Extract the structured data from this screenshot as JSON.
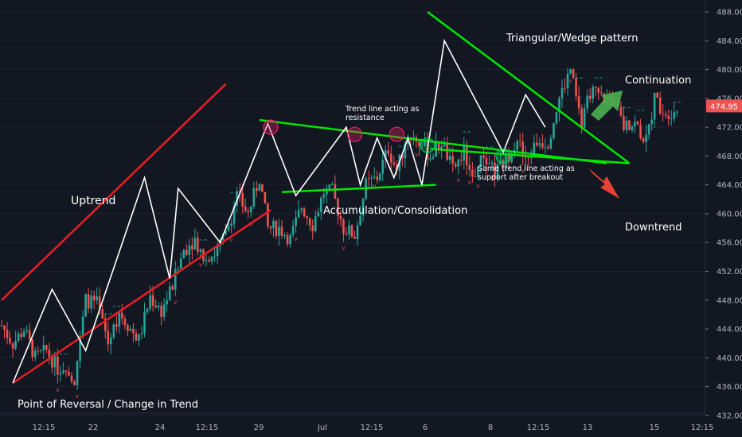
{
  "chart_data": {
    "type": "candlestick",
    "y_axis": {
      "ticks": [
        488,
        484,
        480,
        476,
        472,
        468,
        464,
        460,
        456,
        452,
        448,
        444,
        440,
        436,
        432
      ],
      "tick_labels": [
        "488.00",
        "484.00",
        "480.00",
        "476.00",
        "472.00",
        "468.00",
        "464.00",
        "460.00",
        "456.00",
        "452.00",
        "448.00",
        "444.00",
        "440.00",
        "436.00",
        "432.00"
      ],
      "range": [
        432,
        489
      ],
      "current_price": "474.95"
    },
    "x_axis": {
      "tick_labels": [
        "12:15",
        "22",
        "24",
        "12:15",
        "29",
        "Jul",
        "12:15",
        "6",
        "8",
        "12:15",
        "13",
        "15",
        "12:15"
      ]
    },
    "price_path": [
      [
        0,
        444.5
      ],
      [
        4,
        442
      ],
      [
        8,
        444
      ],
      [
        12,
        440
      ],
      [
        16,
        441
      ],
      [
        20,
        438.5
      ],
      [
        23,
        439
      ],
      [
        26,
        437
      ],
      [
        30,
        448
      ],
      [
        34,
        447.5
      ],
      [
        38,
        442
      ],
      [
        42,
        446.5
      ],
      [
        46,
        444
      ],
      [
        49,
        442.5
      ],
      [
        53,
        448.5
      ],
      [
        57,
        446.5
      ],
      [
        61,
        450
      ],
      [
        65,
        455
      ],
      [
        69,
        456.5
      ],
      [
        72,
        454
      ],
      [
        76,
        454.5
      ],
      [
        80,
        457
      ],
      [
        84,
        462.5
      ],
      [
        88,
        460
      ],
      [
        92,
        465
      ],
      [
        95,
        458
      ],
      [
        99,
        458
      ],
      [
        103,
        456.5
      ],
      [
        107,
        461
      ],
      [
        111,
        458.5
      ],
      [
        115,
        463
      ],
      [
        118,
        463
      ],
      [
        122,
        458
      ],
      [
        126,
        457
      ],
      [
        130,
        464
      ],
      [
        134,
        465
      ],
      [
        138,
        469
      ],
      [
        141,
        466
      ],
      [
        145,
        471
      ],
      [
        149,
        470
      ],
      [
        153,
        468
      ],
      [
        157,
        470
      ],
      [
        161,
        466
      ],
      [
        165,
        468.5
      ],
      [
        168,
        465
      ],
      [
        172,
        468
      ],
      [
        176,
        465.5
      ],
      [
        180,
        467.5
      ],
      [
        184,
        470.5
      ],
      [
        187,
        467
      ],
      [
        191,
        470
      ],
      [
        195,
        470
      ],
      [
        199,
        476
      ],
      [
        203,
        480
      ],
      [
        207,
        472
      ],
      [
        210,
        477
      ],
      [
        214,
        476
      ],
      [
        218,
        476
      ],
      [
        222,
        472
      ],
      [
        226,
        472.5
      ],
      [
        230,
        470
      ],
      [
        233,
        476
      ],
      [
        237,
        474
      ],
      [
        241,
        474.5
      ]
    ],
    "trend_lines": [
      {
        "name": "uptrend-upper",
        "color": "#e91e23",
        "points": [
          [
            0,
            448
          ],
          [
            80,
            478
          ]
        ]
      },
      {
        "name": "uptrend-lower",
        "color": "#e91e23",
        "points": [
          [
            4,
            436.5
          ],
          [
            96,
            460.5
          ]
        ]
      },
      {
        "name": "resistance",
        "color": "#00e600",
        "points": [
          [
            92,
            473
          ],
          [
            216,
            467
          ]
        ]
      },
      {
        "name": "support",
        "color": "#00e600",
        "points": [
          [
            100,
            463
          ],
          [
            155,
            464
          ]
        ]
      },
      {
        "name": "wedge-upper",
        "color": "#00e600",
        "points": [
          [
            152,
            488
          ],
          [
            224,
            467
          ]
        ]
      },
      {
        "name": "breakout-support",
        "color": "#00e600",
        "points": [
          [
            153,
            469
          ],
          [
            224,
            467
          ]
        ]
      }
    ],
    "zigzag": [
      [
        4,
        436.5
      ],
      [
        18,
        449.5
      ],
      [
        30,
        441
      ],
      [
        51,
        465
      ],
      [
        60,
        451
      ],
      [
        63,
        463.5
      ],
      [
        78,
        456
      ],
      [
        95,
        472.5
      ],
      [
        105,
        462.5
      ],
      [
        123,
        472
      ],
      [
        128,
        464
      ],
      [
        134,
        470.5
      ],
      [
        140,
        465
      ],
      [
        145,
        470.5
      ],
      [
        150,
        464
      ],
      [
        158,
        484
      ],
      [
        179,
        468.5
      ],
      [
        187,
        476.5
      ],
      [
        194,
        472
      ]
    ],
    "circles": [
      {
        "x": 96,
        "y": 472,
        "color": "red"
      },
      {
        "x": 126,
        "y": 471,
        "color": "red"
      },
      {
        "x": 141,
        "y": 471,
        "color": "red"
      },
      {
        "x": 152,
        "y": 469.5,
        "color": "green"
      },
      {
        "x": 179,
        "y": 468,
        "color": "green"
      }
    ],
    "annotations": {
      "uptrend": "Uptrend",
      "reversal": "Point of Reversal / Change in Trend",
      "resistance_line1": "Trend line acting as",
      "resistance_line2": "resistance",
      "accumulation": "Accumulation/Consolidation",
      "support_line1": "Same trend line acting as",
      "support_line2": "support after breakout",
      "wedge": "Triangular/Wedge pattern",
      "continuation": "Continuation",
      "downtrend": "Downtrend"
    },
    "colors": {
      "background": "#131722",
      "up": "#26a69a",
      "down": "#ef5350",
      "trend_red": "#e91e23",
      "trend_green": "#00e600",
      "zigzag": "#ffffff",
      "axis_text": "#b2b5be",
      "price_label_bg": "#ef5350"
    }
  }
}
